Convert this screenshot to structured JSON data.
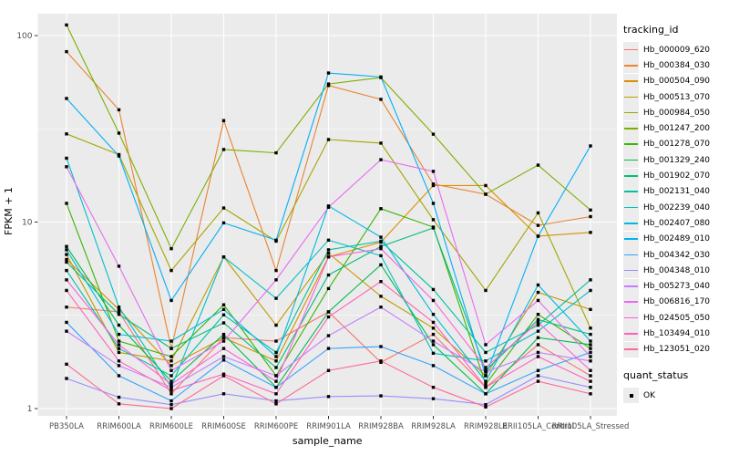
{
  "colors": {
    "panel_bg": "#EBEBEB",
    "grid_major": "#FFFFFF",
    "grid_minor": "#FFFFFF",
    "tick_label": "#4D4D4D",
    "axis_title": "#000000",
    "point": "#000000"
  },
  "chart_data": {
    "type": "line",
    "xlabel": "sample_name",
    "ylabel": "FPKM + 1",
    "y_scale": "log10",
    "y_ticks": [
      1,
      10,
      100
    ],
    "y_minor": [
      3.162,
      31.62
    ],
    "ylim": [
      0.92,
      131
    ],
    "grid": true,
    "legend_position": "right",
    "legend_title": "tracking_id",
    "point_legend": {
      "title": "quant_status",
      "label": "OK"
    },
    "x_categories": [
      "PB350LA",
      "RRIM600LA",
      "RRIM600LE",
      "RRIM600SE",
      "RRIM600PE",
      "RRIM901LA",
      "RRIM928BA",
      "RRIM928LA",
      "RRIM928LE",
      "RRII105LA_Control",
      "RRII105LA_Stressed"
    ],
    "series": [
      {
        "name": "Hb_000009_620",
        "color": "#F8766D",
        "values": [
          3.5,
          3.3,
          1.2,
          2.4,
          2.3,
          3.3,
          1.77,
          2.5,
          1.3,
          2.2,
          1.5
        ]
      },
      {
        "name": "Hb_000384_030",
        "color": "#EA8331",
        "values": [
          82,
          40,
          2.1,
          35,
          5.5,
          54,
          45.5,
          16,
          14.1,
          9.6,
          10.7
        ]
      },
      {
        "name": "Hb_000504_090",
        "color": "#D89000",
        "values": [
          6.3,
          3.4,
          1.7,
          2.4,
          1.8,
          6.5,
          7.8,
          15.7,
          15.7,
          8.4,
          8.8
        ]
      },
      {
        "name": "Hb_000513_070",
        "color": "#C09B00",
        "values": [
          6.7,
          2.0,
          1.8,
          6.5,
          2.8,
          6.8,
          4.0,
          2.7,
          1.5,
          4.2,
          3.4
        ]
      },
      {
        "name": "Hb_000984_050",
        "color": "#A3A500",
        "values": [
          29.7,
          23,
          5.5,
          11.9,
          7.9,
          27.7,
          26.5,
          10.3,
          4.3,
          11.2,
          2.7
        ]
      },
      {
        "name": "Hb_001247_200",
        "color": "#7CAE00",
        "values": [
          114,
          30,
          7.2,
          24.5,
          23.5,
          55,
          59.5,
          29.6,
          14.1,
          20.2,
          11.6
        ]
      },
      {
        "name": "Hb_001278_070",
        "color": "#39B600",
        "values": [
          12.6,
          2.3,
          1.9,
          3.6,
          1.5,
          4.4,
          11.8,
          9.4,
          1.35,
          3.2,
          2.1
        ]
      },
      {
        "name": "Hb_001329_240",
        "color": "#00BB4E",
        "values": [
          7.4,
          2.8,
          1.4,
          2.5,
          1.3,
          3.3,
          5.9,
          2.2,
          1.2,
          2.4,
          2.2
        ]
      },
      {
        "name": "Hb_001902_070",
        "color": "#00BF7D",
        "values": [
          6.1,
          3.2,
          2.1,
          2.88,
          1.66,
          5.2,
          7.4,
          9.3,
          1.6,
          3.0,
          2.5
        ]
      },
      {
        "name": "Hb_002131_040",
        "color": "#00C1A3",
        "values": [
          5.5,
          2.1,
          1.5,
          3.18,
          2.0,
          7.1,
          7.9,
          4.35,
          2.0,
          2.8,
          4.9
        ]
      },
      {
        "name": "Hb_002239_040",
        "color": "#00BFC4",
        "values": [
          22,
          3.5,
          1.3,
          6.5,
          3.9,
          8.0,
          6.6,
          1.98,
          1.8,
          2.6,
          4.3
        ]
      },
      {
        "name": "Hb_002407_080",
        "color": "#00BADE",
        "values": [
          7.1,
          2.5,
          2.3,
          3.4,
          1.9,
          12.2,
          8.3,
          3.2,
          1.4,
          4.6,
          2.3
        ]
      },
      {
        "name": "Hb_002489_010",
        "color": "#00B0F6",
        "values": [
          46,
          22.6,
          3.8,
          9.9,
          8.0,
          63,
          60,
          12.6,
          1.5,
          8.4,
          25.6
        ]
      },
      {
        "name": "Hb_004342_030",
        "color": "#35A2FF",
        "values": [
          2.9,
          1.5,
          1.1,
          1.82,
          1.3,
          2.1,
          2.15,
          1.7,
          1.2,
          1.6,
          2.0
        ]
      },
      {
        "name": "Hb_004348_010",
        "color": "#9590FF",
        "values": [
          1.45,
          1.15,
          1.05,
          1.2,
          1.1,
          1.16,
          1.17,
          1.13,
          1.05,
          1.5,
          1.3
        ]
      },
      {
        "name": "Hb_005273_040",
        "color": "#C77CFF",
        "values": [
          2.6,
          1.7,
          1.3,
          1.9,
          1.5,
          2.46,
          3.5,
          2.3,
          1.57,
          2.0,
          1.8
        ]
      },
      {
        "name": "Hb_006816_170",
        "color": "#E76BF3",
        "values": [
          19.8,
          5.8,
          1.6,
          2.3,
          4.9,
          12.0,
          21.6,
          18.7,
          2.2,
          3.8,
          1.9
        ]
      },
      {
        "name": "Hb_024505_050",
        "color": "#FA62DB",
        "values": [
          4.9,
          2.2,
          1.35,
          2.1,
          1.4,
          6.5,
          7.2,
          3.8,
          1.66,
          2.9,
          1.6
        ]
      },
      {
        "name": "Hb_103494_010",
        "color": "#FF62BC",
        "values": [
          4.3,
          1.8,
          1.25,
          1.53,
          1.2,
          3.1,
          4.8,
          2.9,
          1.3,
          1.9,
          1.4
        ]
      },
      {
        "name": "Hb_123051_020",
        "color": "#FF6A98",
        "values": [
          1.73,
          1.06,
          1.0,
          1.5,
          1.06,
          1.6,
          1.8,
          1.3,
          1.02,
          1.4,
          1.2
        ]
      }
    ]
  }
}
